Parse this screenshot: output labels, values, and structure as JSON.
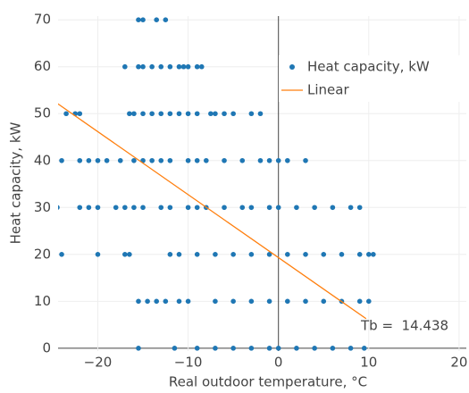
{
  "chart_data": {
    "type": "scatter",
    "xlabel": "Real outdoor temperature, °C",
    "ylabel": "Heat capacity, kW",
    "xlim": [
      -24.4,
      20.8
    ],
    "xticks": [
      {
        "value": -20,
        "label": "−20"
      },
      {
        "value": -10,
        "label": "−10"
      },
      0,
      10,
      20
    ],
    "ylim": [
      -0.6,
      70.8
    ],
    "yticks": [
      0,
      10,
      20,
      30,
      40,
      50,
      60,
      70
    ],
    "grid": true,
    "legend": "top-right",
    "annotation": "Tb =  14.438",
    "series": [
      {
        "name": "Heat capacity, kW",
        "type": "scatter",
        "color": "#1f77b4",
        "x": [
          -15.5,
          -15,
          -13.5,
          -12.5,
          -17,
          -15.5,
          -15,
          -14,
          -13,
          -12,
          -11,
          -10.5,
          -10,
          -9,
          -8.5,
          -23.5,
          -22.5,
          -22,
          -16.5,
          -16,
          -15,
          -14,
          -13,
          -12,
          -11,
          -10,
          -9,
          -7.5,
          -7,
          -6,
          -5,
          -3,
          -2,
          -24,
          -22,
          -21,
          -20,
          -19,
          -17.5,
          -16,
          -15,
          -14,
          -13,
          -12,
          -10,
          -9,
          -8,
          -6,
          -4,
          -2,
          -1,
          0,
          1,
          3,
          -24.5,
          -22,
          -21,
          -20,
          -18,
          -17,
          -16,
          -15,
          -13,
          -12,
          -10,
          -9,
          -8,
          -6,
          -4,
          -3,
          -1,
          0,
          2,
          4,
          6,
          8,
          9,
          -24,
          -20,
          -17,
          -16.5,
          -12,
          -11,
          -9,
          -7,
          -5,
          -3,
          -1,
          1,
          3,
          5,
          7,
          9,
          10,
          10.5,
          -15.5,
          -14.5,
          -13.5,
          -12.5,
          -11,
          -10,
          -7,
          -5,
          -3,
          -1,
          1,
          3,
          5,
          7,
          9,
          10,
          -15.5,
          -11.5,
          -9,
          -7,
          -5,
          -3,
          -1,
          0,
          2,
          4,
          6,
          8,
          9.5
        ],
        "values": [
          70,
          70,
          70,
          70,
          60,
          60,
          60,
          60,
          60,
          60,
          60,
          60,
          60,
          60,
          60,
          50,
          50,
          50,
          50,
          50,
          50,
          50,
          50,
          50,
          50,
          50,
          50,
          50,
          50,
          50,
          50,
          50,
          50,
          40,
          40,
          40,
          40,
          40,
          40,
          40,
          40,
          40,
          40,
          40,
          40,
          40,
          40,
          40,
          40,
          40,
          40,
          40,
          40,
          40,
          30,
          30,
          30,
          30,
          30,
          30,
          30,
          30,
          30,
          30,
          30,
          30,
          30,
          30,
          30,
          30,
          30,
          30,
          30,
          30,
          30,
          30,
          30,
          20,
          20,
          20,
          20,
          20,
          20,
          20,
          20,
          20,
          20,
          20,
          20,
          20,
          20,
          20,
          20,
          20,
          20,
          10,
          10,
          10,
          10,
          10,
          10,
          10,
          10,
          10,
          10,
          10,
          10,
          10,
          10,
          10,
          10,
          0,
          0,
          0,
          0,
          0,
          0,
          0,
          0,
          0,
          0,
          0,
          0,
          0
        ]
      },
      {
        "name": "Linear",
        "type": "line",
        "color": "#ff7f0e",
        "x": [
          -24.5,
          9.7
        ],
        "values": [
          52.2,
          6.3
        ]
      }
    ]
  }
}
